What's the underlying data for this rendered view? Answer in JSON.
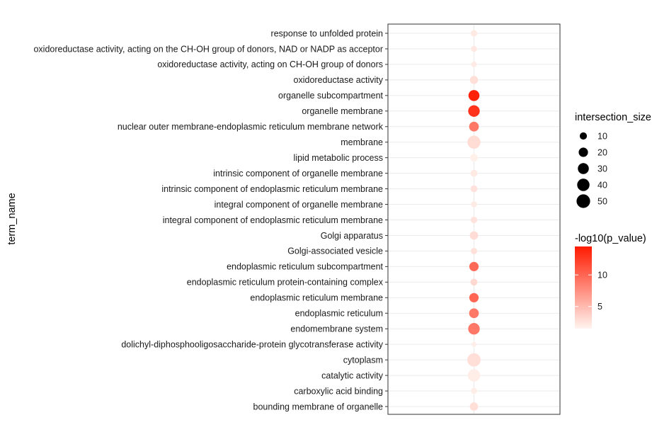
{
  "chart_data": {
    "type": "scatter",
    "title": "",
    "xlabel": "",
    "ylabel": "term_name",
    "grid": true,
    "legend_position": "right",
    "terms": [
      "response to unfolded protein",
      "oxidoreductase activity, acting on the CH-OH group of donors, NAD or NADP as acceptor",
      "oxidoreductase activity, acting on CH-OH group of donors",
      "oxidoreductase activity",
      "organelle subcompartment",
      "organelle membrane",
      "nuclear outer membrane-endoplasmic reticulum membrane network",
      "membrane",
      "lipid metabolic process",
      "intrinsic component of organelle membrane",
      "intrinsic component of endoplasmic reticulum membrane",
      "integral component of organelle membrane",
      "integral component of endoplasmic reticulum membrane",
      "Golgi apparatus",
      "Golgi-associated vesicle",
      "endoplasmic reticulum subcompartment",
      "endoplasmic reticulum protein-containing complex",
      "endoplasmic reticulum membrane",
      "endoplasmic reticulum",
      "endomembrane system",
      "dolichyl-diphosphooligosaccharide-protein glycotransferase activity",
      "cytoplasm",
      "catalytic activity",
      "carboxylic acid binding",
      "bounding membrane of organelle"
    ],
    "series": [
      {
        "intersection_size": [
          8,
          6,
          5,
          14,
          30,
          34,
          22,
          45,
          12,
          9,
          9,
          6,
          8,
          15,
          7,
          20,
          9,
          20,
          22,
          34,
          3,
          48,
          40,
          6,
          15
        ],
        "neg_log10_p_value": [
          2.2,
          2.3,
          2.1,
          2.8,
          14.0,
          13.0,
          9.0,
          3.0,
          1.8,
          2.2,
          2.6,
          2.1,
          2.6,
          2.9,
          2.7,
          9.8,
          3.2,
          10.0,
          9.0,
          9.0,
          2.0,
          2.8,
          2.0,
          2.0,
          2.8
        ]
      }
    ],
    "size_legend": {
      "title": "intersection_size",
      "values": [
        10,
        20,
        30,
        40,
        50
      ],
      "labels": [
        "10",
        "20",
        "30",
        "40",
        "50"
      ]
    },
    "color_legend": {
      "title": "-log10(p_value)",
      "range": [
        1.5,
        14.5
      ],
      "tick_values": [
        5,
        10
      ],
      "tick_labels": [
        "5",
        "10"
      ],
      "low_color": "#fff5f0",
      "high_color": "#ff1a00"
    }
  }
}
